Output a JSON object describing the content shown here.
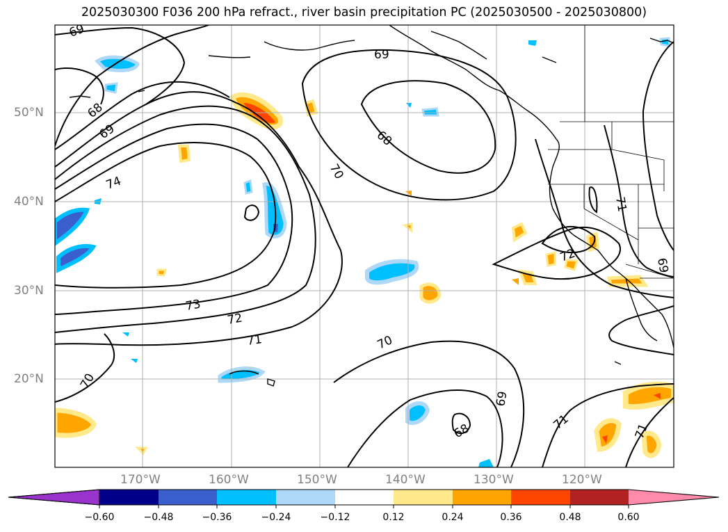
{
  "title": "2025030300 F036 200 hPa refract., river basin precipitation PC (2025030500 - 2025030800)",
  "lat_labels": [
    "50°N",
    "40°N",
    "30°N",
    "20°N"
  ],
  "lon_labels": [
    "170°W",
    "160°W",
    "150°W",
    "140°W",
    "130°W",
    "120°W"
  ],
  "contour_labels": [
    "69",
    "68",
    "69",
    "74",
    "69",
    "68",
    "70",
    "73",
    "72",
    "71",
    "70",
    "70",
    "69",
    "68",
    "71",
    "71",
    "72",
    "69",
    "71"
  ],
  "colorbar": {
    "ticks": [
      "−0.60",
      "−0.48",
      "−0.36",
      "−0.24",
      "−0.12",
      "0.12",
      "0.24",
      "0.36",
      "0.48",
      "0.60"
    ],
    "colors": [
      "#9933cc",
      "#00008b",
      "#3a5fcd",
      "#00bfff",
      "#add8f7",
      "#ffffff",
      "#ffe98a",
      "#ffa500",
      "#ff4500",
      "#b22222",
      "#ff8aaa"
    ]
  }
}
